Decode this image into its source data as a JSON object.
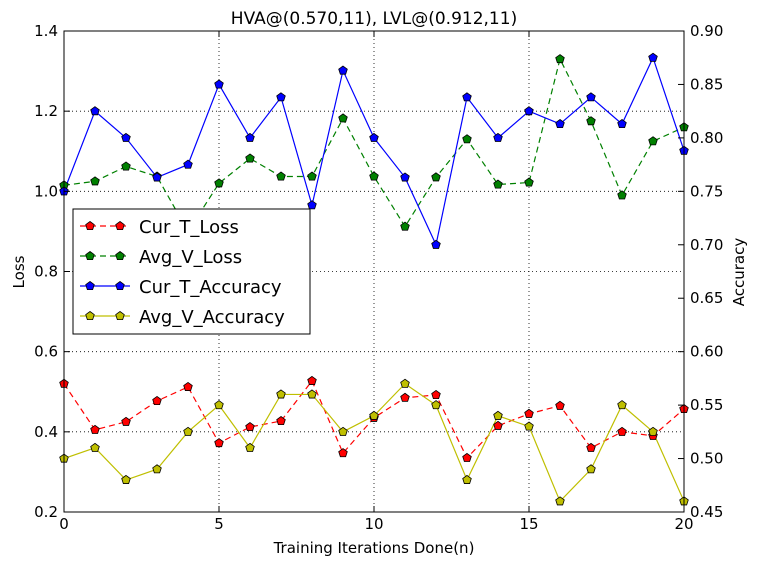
{
  "chart_data": {
    "type": "line",
    "title": "HVA@(0.570,11), LVL@(0.912,11)",
    "xlabel": "Training Iterations Done(n)",
    "ylabel_left": "Loss",
    "ylabel_right": "Accuracy",
    "xlim": [
      0,
      20
    ],
    "ylim_left": [
      0.2,
      1.4
    ],
    "ylim_right": [
      0.45,
      0.9
    ],
    "x_ticks": [
      "0",
      "5",
      "10",
      "15",
      "20"
    ],
    "y_left_ticks": [
      "0.2",
      "0.4",
      "0.6",
      "0.8",
      "1.0",
      "1.2",
      "1.4"
    ],
    "y_right_ticks": [
      "0.45",
      "0.50",
      "0.55",
      "0.60",
      "0.65",
      "0.70",
      "0.75",
      "0.80",
      "0.85",
      "0.90"
    ],
    "grid": true,
    "legend_position": "center-left",
    "x": [
      0,
      1,
      2,
      3,
      4,
      5,
      6,
      7,
      8,
      9,
      10,
      11,
      12,
      13,
      14,
      15,
      16,
      17,
      18,
      19,
      20
    ],
    "series": [
      {
        "name": "Cur_T_Loss",
        "axis": "left",
        "color": "#ff0000",
        "style": "dashed",
        "values": [
          0.52,
          0.405,
          0.425,
          0.477,
          0.512,
          0.372,
          0.412,
          0.427,
          0.527,
          0.347,
          0.435,
          0.485,
          0.492,
          0.335,
          0.415,
          0.445,
          0.465,
          0.36,
          0.4,
          0.39,
          0.457
        ]
      },
      {
        "name": "Avg_V_Loss",
        "axis": "left",
        "color": "#008000",
        "style": "dashed",
        "values": [
          1.015,
          1.025,
          1.062,
          1.037,
          0.9,
          1.02,
          1.082,
          1.037,
          1.037,
          1.182,
          1.037,
          0.912,
          1.035,
          1.13,
          1.017,
          1.022,
          1.33,
          1.175,
          0.99,
          1.125,
          1.16
        ]
      },
      {
        "name": "Cur_T_Accuracy",
        "axis": "right",
        "color": "#0000ff",
        "style": "solid",
        "values": [
          0.75,
          0.825,
          0.8,
          0.763,
          0.775,
          0.85,
          0.8,
          0.838,
          0.737,
          0.863,
          0.8,
          0.763,
          0.7,
          0.838,
          0.8,
          0.825,
          0.813,
          0.838,
          0.813,
          0.875,
          0.788
        ]
      },
      {
        "name": "Avg_V_Accuracy",
        "axis": "right",
        "color": "#bfbf00",
        "style": "solid",
        "values": [
          0.5,
          0.51,
          0.48,
          0.49,
          0.525,
          0.55,
          0.51,
          0.56,
          0.56,
          0.525,
          0.54,
          0.57,
          0.55,
          0.48,
          0.54,
          0.53,
          0.46,
          0.49,
          0.55,
          0.525,
          0.46
        ]
      }
    ]
  }
}
